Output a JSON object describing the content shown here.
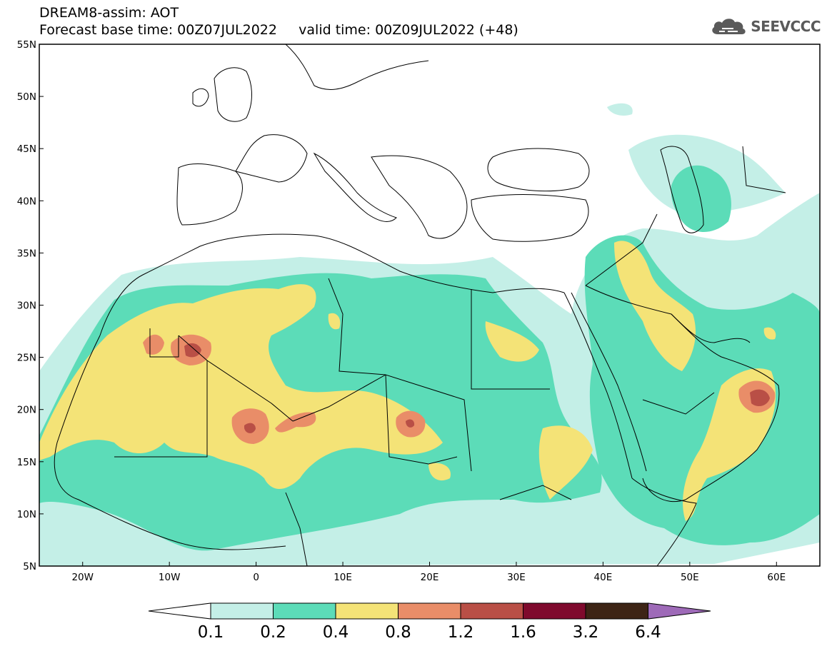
{
  "header": {
    "line1": "DREAM8-assim: AOT",
    "line2": "Forecast base time: 00Z07JUL2022     valid time: 00Z09JUL2022 (+48)"
  },
  "logo": {
    "text": "SEEVCCC",
    "icon": "cloud-icon"
  },
  "map": {
    "lon_range": [
      -25,
      65
    ],
    "lat_range": [
      5,
      55
    ],
    "lat_ticks": [
      "55N",
      "50N",
      "45N",
      "40N",
      "35N",
      "30N",
      "25N",
      "20N",
      "15N",
      "10N",
      "5N"
    ],
    "lon_ticks": [
      "20W",
      "10W",
      "0",
      "10E",
      "20E",
      "30E",
      "40E",
      "50E",
      "60E"
    ]
  },
  "colors": {
    "c1": "#c4efe7",
    "c2": "#5cdcb8",
    "c3": "#f4e377",
    "c4": "#e98d68",
    "c5": "#b94f46",
    "c6": "#7f0a2d",
    "c7": "#3d2415",
    "c8": "#9e6ab8",
    "low": "#ffffff"
  },
  "legend": {
    "labels": [
      "0.1",
      "0.2",
      "0.4",
      "0.8",
      "1.2",
      "1.6",
      "3.2",
      "6.4"
    ]
  }
}
